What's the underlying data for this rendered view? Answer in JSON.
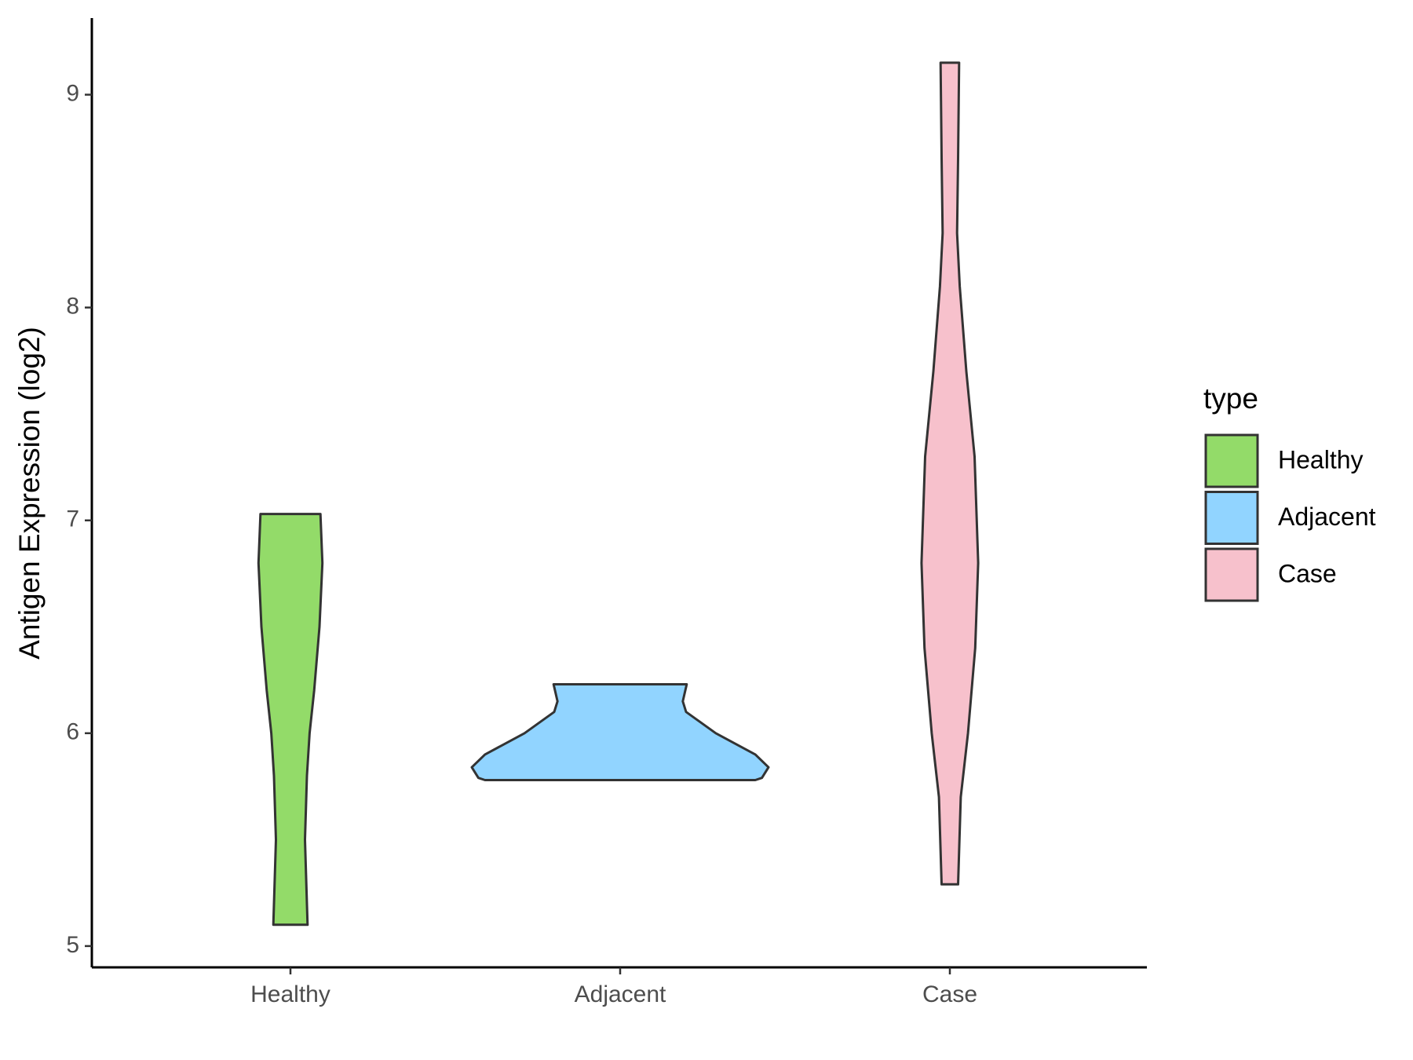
{
  "chart_data": {
    "type": "violin",
    "y_label": "Antigen Expression (log2)",
    "legend_title": "type",
    "legend_position": "right",
    "categories": [
      "Healthy",
      "Adjacent",
      "Case"
    ],
    "ylim": [
      4.9,
      9.36
    ],
    "yticks": [
      5,
      6,
      7,
      8,
      9
    ],
    "series": [
      {
        "name": "Healthy",
        "color": "#93db69",
        "y": [
          7.03,
          6.8,
          6.5,
          6.2,
          6.0,
          5.8,
          5.5,
          5.1
        ],
        "widths": [
          0.091,
          0.097,
          0.088,
          0.072,
          0.058,
          0.05,
          0.044,
          0.052
        ]
      },
      {
        "name": "Adjacent",
        "color": "#91d4ff",
        "y": [
          6.23,
          6.15,
          6.1,
          6.0,
          5.9,
          5.84,
          5.79,
          5.78
        ],
        "widths": [
          0.202,
          0.19,
          0.2,
          0.29,
          0.41,
          0.45,
          0.43,
          0.41
        ]
      },
      {
        "name": "Case",
        "color": "#f7c1cc",
        "y": [
          9.15,
          8.7,
          8.35,
          8.1,
          7.7,
          7.3,
          6.8,
          6.4,
          6.0,
          5.7,
          5.29
        ],
        "widths": [
          0.028,
          0.025,
          0.022,
          0.03,
          0.05,
          0.075,
          0.086,
          0.077,
          0.055,
          0.033,
          0.025
        ]
      }
    ]
  }
}
